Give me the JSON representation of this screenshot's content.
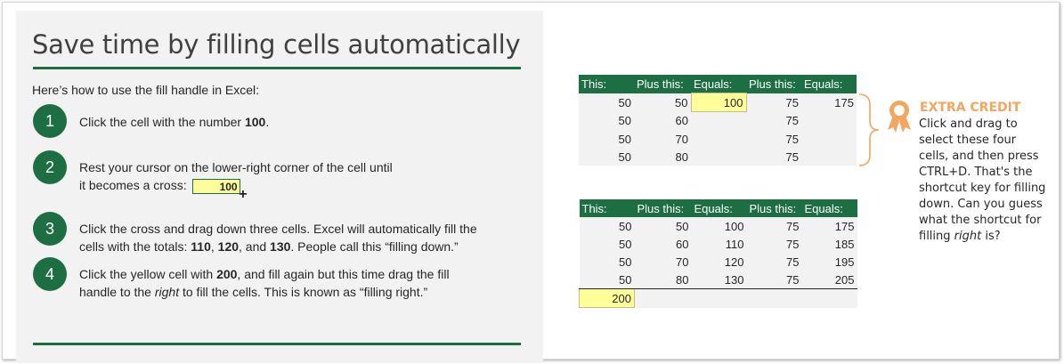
{
  "title": "Save time by filling cells automatically",
  "intro": "Here’s how to use the fill handle in Excel:",
  "steps": [
    {
      "num": "1",
      "text_before": "Click the cell with the number ",
      "bold": "100",
      "text_after": "."
    },
    {
      "num": "2",
      "line1": "Rest your cursor on the lower-right corner of the cell until",
      "line2": "it becomes a cross:",
      "cell_value": "100",
      "cross": "+"
    },
    {
      "num": "3",
      "t1": "Click the cross and drag down three cells. Excel will automatically fill the",
      "t2": "cells with the totals: ",
      "b1": "110",
      "sep1": ", ",
      "b2": "120",
      "sep2": ", and ",
      "b3": "130",
      "t3": ". People call this “filling down.”"
    },
    {
      "num": "4",
      "t1": "Click the yellow cell with ",
      "b1": "200",
      "t2": ", and fill again but this time drag the fill",
      "t3": "handle to the ",
      "i1": "right",
      "t4": " to fill the cells. This is known as “filling right.”"
    }
  ],
  "table_headers": [
    "This:",
    "Plus this:",
    "Equals:",
    "Plus this:",
    "Equals:"
  ],
  "table1_rows": [
    [
      "50",
      "50",
      "100",
      "75",
      "175"
    ],
    [
      "50",
      "60",
      "",
      "75",
      ""
    ],
    [
      "50",
      "70",
      "",
      "75",
      ""
    ],
    [
      "50",
      "80",
      "",
      "75",
      ""
    ]
  ],
  "table2_rows": [
    [
      "50",
      "50",
      "100",
      "75",
      "175"
    ],
    [
      "50",
      "60",
      "110",
      "75",
      "185"
    ],
    [
      "50",
      "70",
      "120",
      "75",
      "195"
    ],
    [
      "50",
      "80",
      "130",
      "75",
      "205"
    ]
  ],
  "table2_total": "200",
  "extra_credit": {
    "title": "EXTRA CREDIT",
    "l1": "Click and drag to",
    "l2": "select these four",
    "l3": "cells, and then press",
    "l4": "CTRL+D. That's the",
    "l5": "shortcut key for filling",
    "l6": "down. Can you guess",
    "l7": "what the shortcut for",
    "l8a": "filling ",
    "l8i": "right",
    "l8b": " is?"
  },
  "colors": {
    "accent": "#1e6e43",
    "highlight": "#ffff99",
    "extra_credit": "#f2a65f"
  },
  "icons": {
    "badge": "award-ribbon-icon",
    "brace": "curly-brace-icon"
  }
}
